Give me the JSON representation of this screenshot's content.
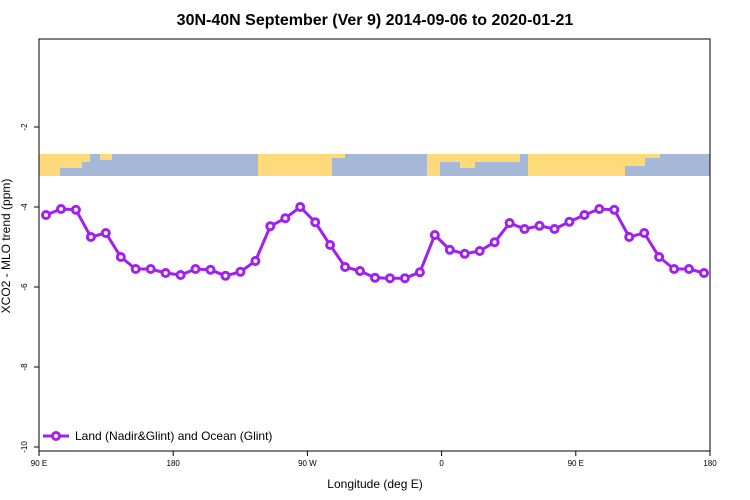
{
  "chart_data": {
    "type": "line",
    "title": "30N-40N September (Ver 9)   2014-09-06 to 2020-01-21",
    "xlabel": "Longitude (deg E)",
    "ylabel": "XCO2 - MLO trend (ppm)",
    "ylim": [
      -10,
      0
    ],
    "x_ticks": [
      "90 E",
      "180",
      "90 W",
      "0",
      "90 E",
      "180"
    ],
    "y_ticks": [
      -2,
      -4,
      -6,
      -8,
      -10
    ],
    "legend": [
      "Land (Nadir&Glint) and Ocean (Glint)"
    ],
    "series": [
      {
        "name": "Land (Nadir&Glint) and Ocean (Glint)",
        "color": "#a020f0",
        "values": [
          -4.2,
          -4.05,
          -4.07,
          -4.75,
          -4.65,
          -5.25,
          -5.55,
          -5.55,
          -5.65,
          -5.7,
          -5.55,
          -5.57,
          -5.72,
          -5.62,
          -5.35,
          -4.48,
          -4.28,
          -4.0,
          -4.38,
          -4.95,
          -5.5,
          -5.6,
          -5.77,
          -5.78,
          -5.78,
          -5.63,
          -4.7,
          -5.07,
          -5.17,
          -5.1,
          -4.88,
          -4.4,
          -4.55,
          -4.47,
          -4.55,
          -4.37,
          -4.2,
          -4.05,
          -4.07,
          -4.75,
          -4.65,
          -5.25,
          -5.55,
          -5.55,
          -5.65
        ]
      }
    ],
    "map_strip": {
      "ocean_color": "#a6b8d8",
      "land_color": "#ffda7b"
    }
  }
}
